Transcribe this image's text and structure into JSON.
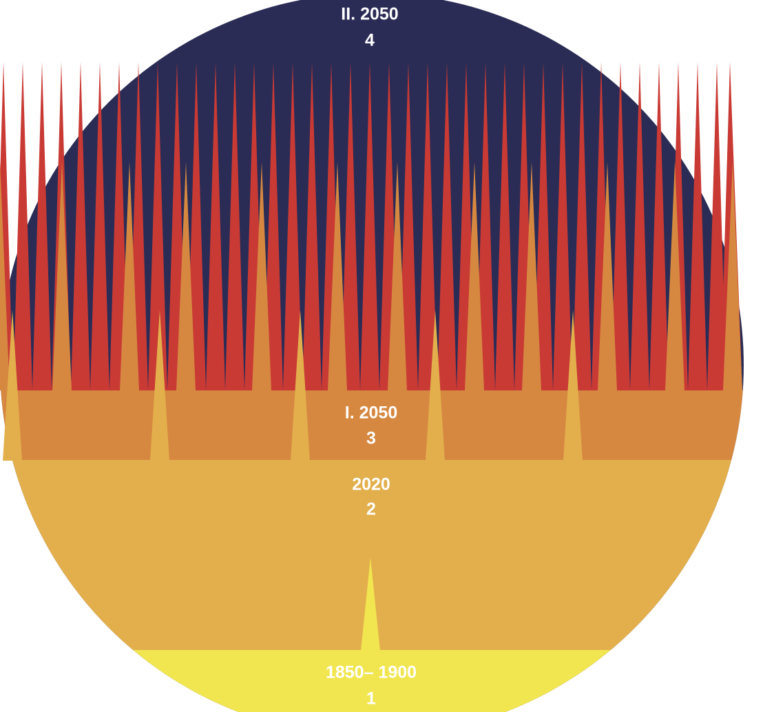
{
  "layers": [
    {
      "period": "1850– 1900",
      "number": "1"
    },
    {
      "period": "2020",
      "number": "2"
    },
    {
      "period": "I. 2050",
      "number": "3"
    },
    {
      "period": "II. 2050",
      "number": "4"
    }
  ]
}
